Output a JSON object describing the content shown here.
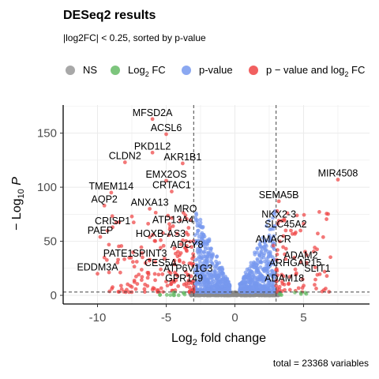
{
  "chart_data": {
    "type": "scatter",
    "title": "DESeq2 results",
    "subtitle": "|log2FC| < 0.25, sorted by p-value",
    "xlabel": "Log2 fold change",
    "ylabel": "− Log10 P",
    "xlim": [
      -12.5,
      9.8
    ],
    "ylim": [
      -8,
      176
    ],
    "x_ticks": [
      -10,
      -5,
      0,
      5
    ],
    "y_ticks": [
      0,
      50,
      100,
      150
    ],
    "grid": true,
    "legend_position": "top",
    "legend": [
      {
        "label": "NS",
        "color": "#999999"
      },
      {
        "label": "Log2 FC",
        "color": "#66bb66"
      },
      {
        "label": "p-value",
        "color": "#7799ee"
      },
      {
        "label": "p − value and log2 FC",
        "color": "#ee4444"
      }
    ],
    "fc_cutoff": 3,
    "p_cutoff_log10": 3,
    "caption": "total = 23368 variables",
    "labeled_points": [
      {
        "gene": "MFSD2A",
        "x": -6.0,
        "y": 163
      },
      {
        "gene": "ACSL6",
        "x": -5.0,
        "y": 149
      },
      {
        "gene": "PKD1L2",
        "x": -6.0,
        "y": 132
      },
      {
        "gene": "CLDN2",
        "x": -8.0,
        "y": 123
      },
      {
        "gene": "AKR1B1",
        "x": -3.8,
        "y": 122
      },
      {
        "gene": "EMX2OS",
        "x": -5.0,
        "y": 106
      },
      {
        "gene": "TMEM114",
        "x": -9.0,
        "y": 95
      },
      {
        "gene": "CRTAC1",
        "x": -4.6,
        "y": 96
      },
      {
        "gene": "AQP2",
        "x": -9.5,
        "y": 83
      },
      {
        "gene": "ANXA13",
        "x": -6.2,
        "y": 80
      },
      {
        "gene": "MRO",
        "x": -3.6,
        "y": 74
      },
      {
        "gene": "CRISP1",
        "x": -8.9,
        "y": 63
      },
      {
        "gene": "ATP13A4",
        "x": -4.5,
        "y": 64
      },
      {
        "gene": "PAEP",
        "x": -9.8,
        "y": 54
      },
      {
        "gene": "HOXB-AS3",
        "x": -5.4,
        "y": 51
      },
      {
        "gene": "ADCY8",
        "x": -3.5,
        "y": 41
      },
      {
        "gene": "PATE1",
        "x": -8.5,
        "y": 33
      },
      {
        "gene": "SPINT3",
        "x": -6.2,
        "y": 33
      },
      {
        "gene": "CES5A",
        "x": -5.4,
        "y": 24
      },
      {
        "gene": "EDDM3A",
        "x": -10.0,
        "y": 20
      },
      {
        "gene": "ATP6V1G3",
        "x": -3.4,
        "y": 19
      },
      {
        "gene": "GPR149",
        "x": -3.7,
        "y": 10
      },
      {
        "gene": "MIR4508",
        "x": 7.5,
        "y": 107
      },
      {
        "gene": "SEMA5B",
        "x": 3.2,
        "y": 87
      },
      {
        "gene": "NKX2-3",
        "x": 3.2,
        "y": 69
      },
      {
        "gene": "SLC45A2",
        "x": 3.7,
        "y": 60
      },
      {
        "gene": "AMACR",
        "x": 2.8,
        "y": 46
      },
      {
        "gene": "ADAM2",
        "x": 4.8,
        "y": 31
      },
      {
        "gene": "ARHGAP15",
        "x": 4.4,
        "y": 24
      },
      {
        "gene": "SLIT1",
        "x": 6.0,
        "y": 19
      },
      {
        "gene": "ADAM18",
        "x": 3.6,
        "y": 10
      }
    ]
  }
}
